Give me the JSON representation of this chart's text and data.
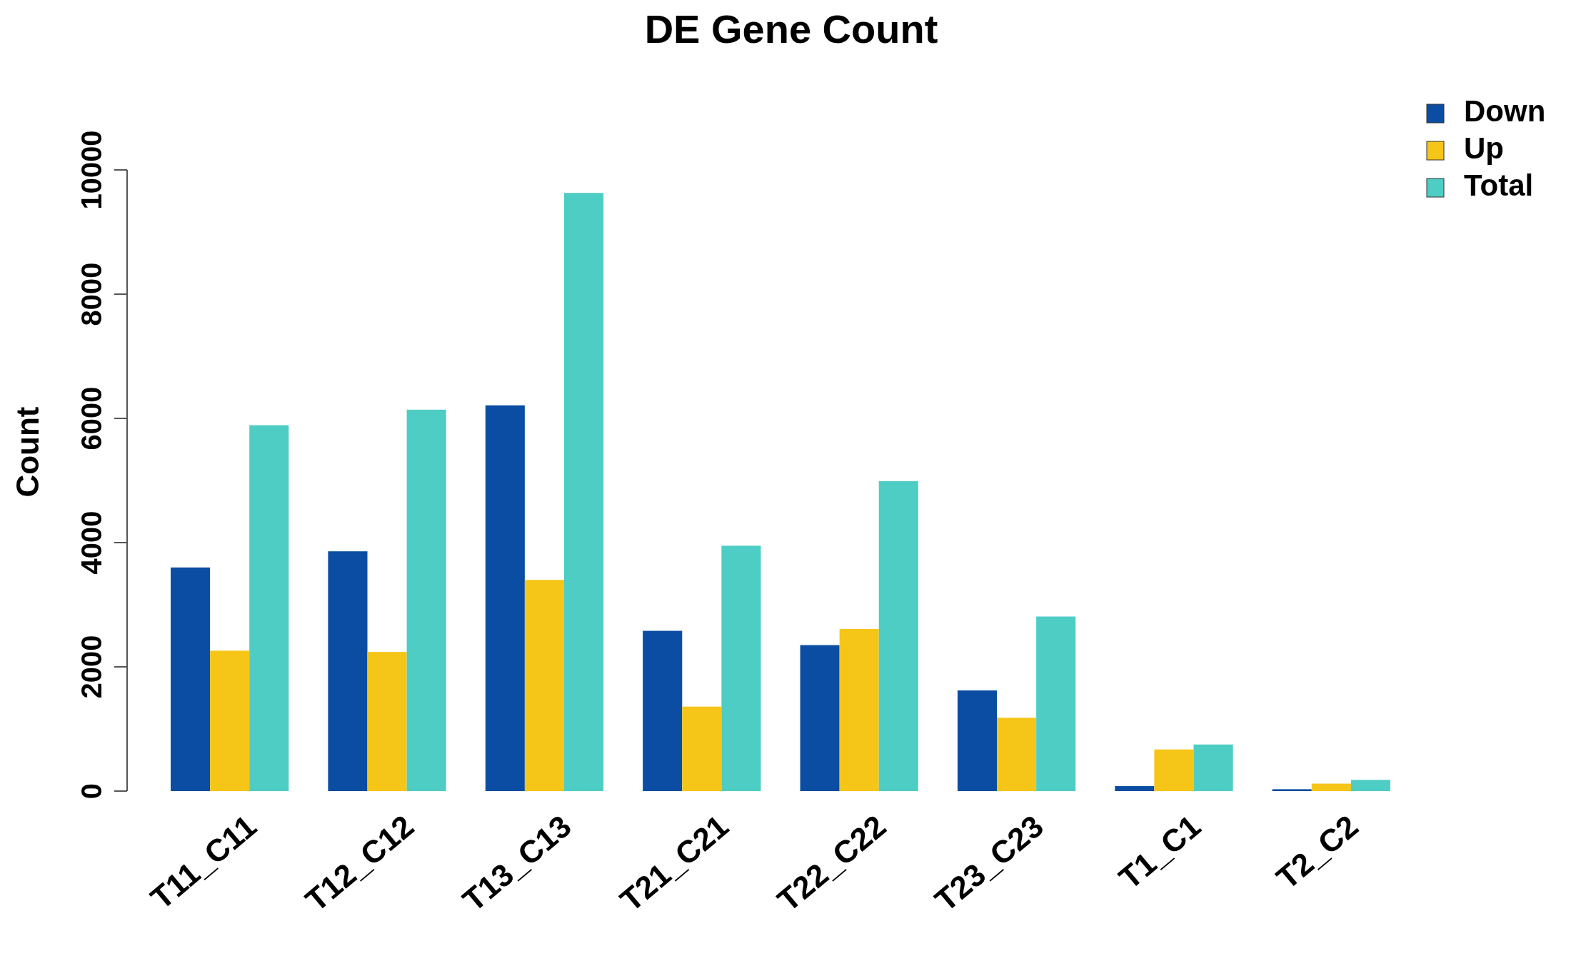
{
  "chart_data": {
    "type": "bar",
    "title": "DE Gene Count",
    "ylabel": "Count",
    "categories": [
      "T11_C11",
      "T12_C12",
      "T13_C13",
      "T21_C21",
      "T22_C22",
      "T23_C23",
      "T1_C1",
      "T2_C2"
    ],
    "series": [
      {
        "name": "Down",
        "color": "#0a4da2",
        "values": [
          3600,
          3860,
          6210,
          2580,
          2350,
          1620,
          80,
          30
        ]
      },
      {
        "name": "Up",
        "color": "#f5c518",
        "values": [
          2260,
          2240,
          3400,
          1360,
          2610,
          1180,
          670,
          120
        ]
      },
      {
        "name": "Total",
        "color": "#4ecdc4",
        "values": [
          5890,
          6140,
          9630,
          3950,
          4990,
          2810,
          750,
          180
        ]
      }
    ],
    "ylim": [
      0,
      10000
    ],
    "yticks": [
      0,
      2000,
      4000,
      6000,
      8000,
      10000
    ],
    "grid": false,
    "legend": "top right"
  }
}
